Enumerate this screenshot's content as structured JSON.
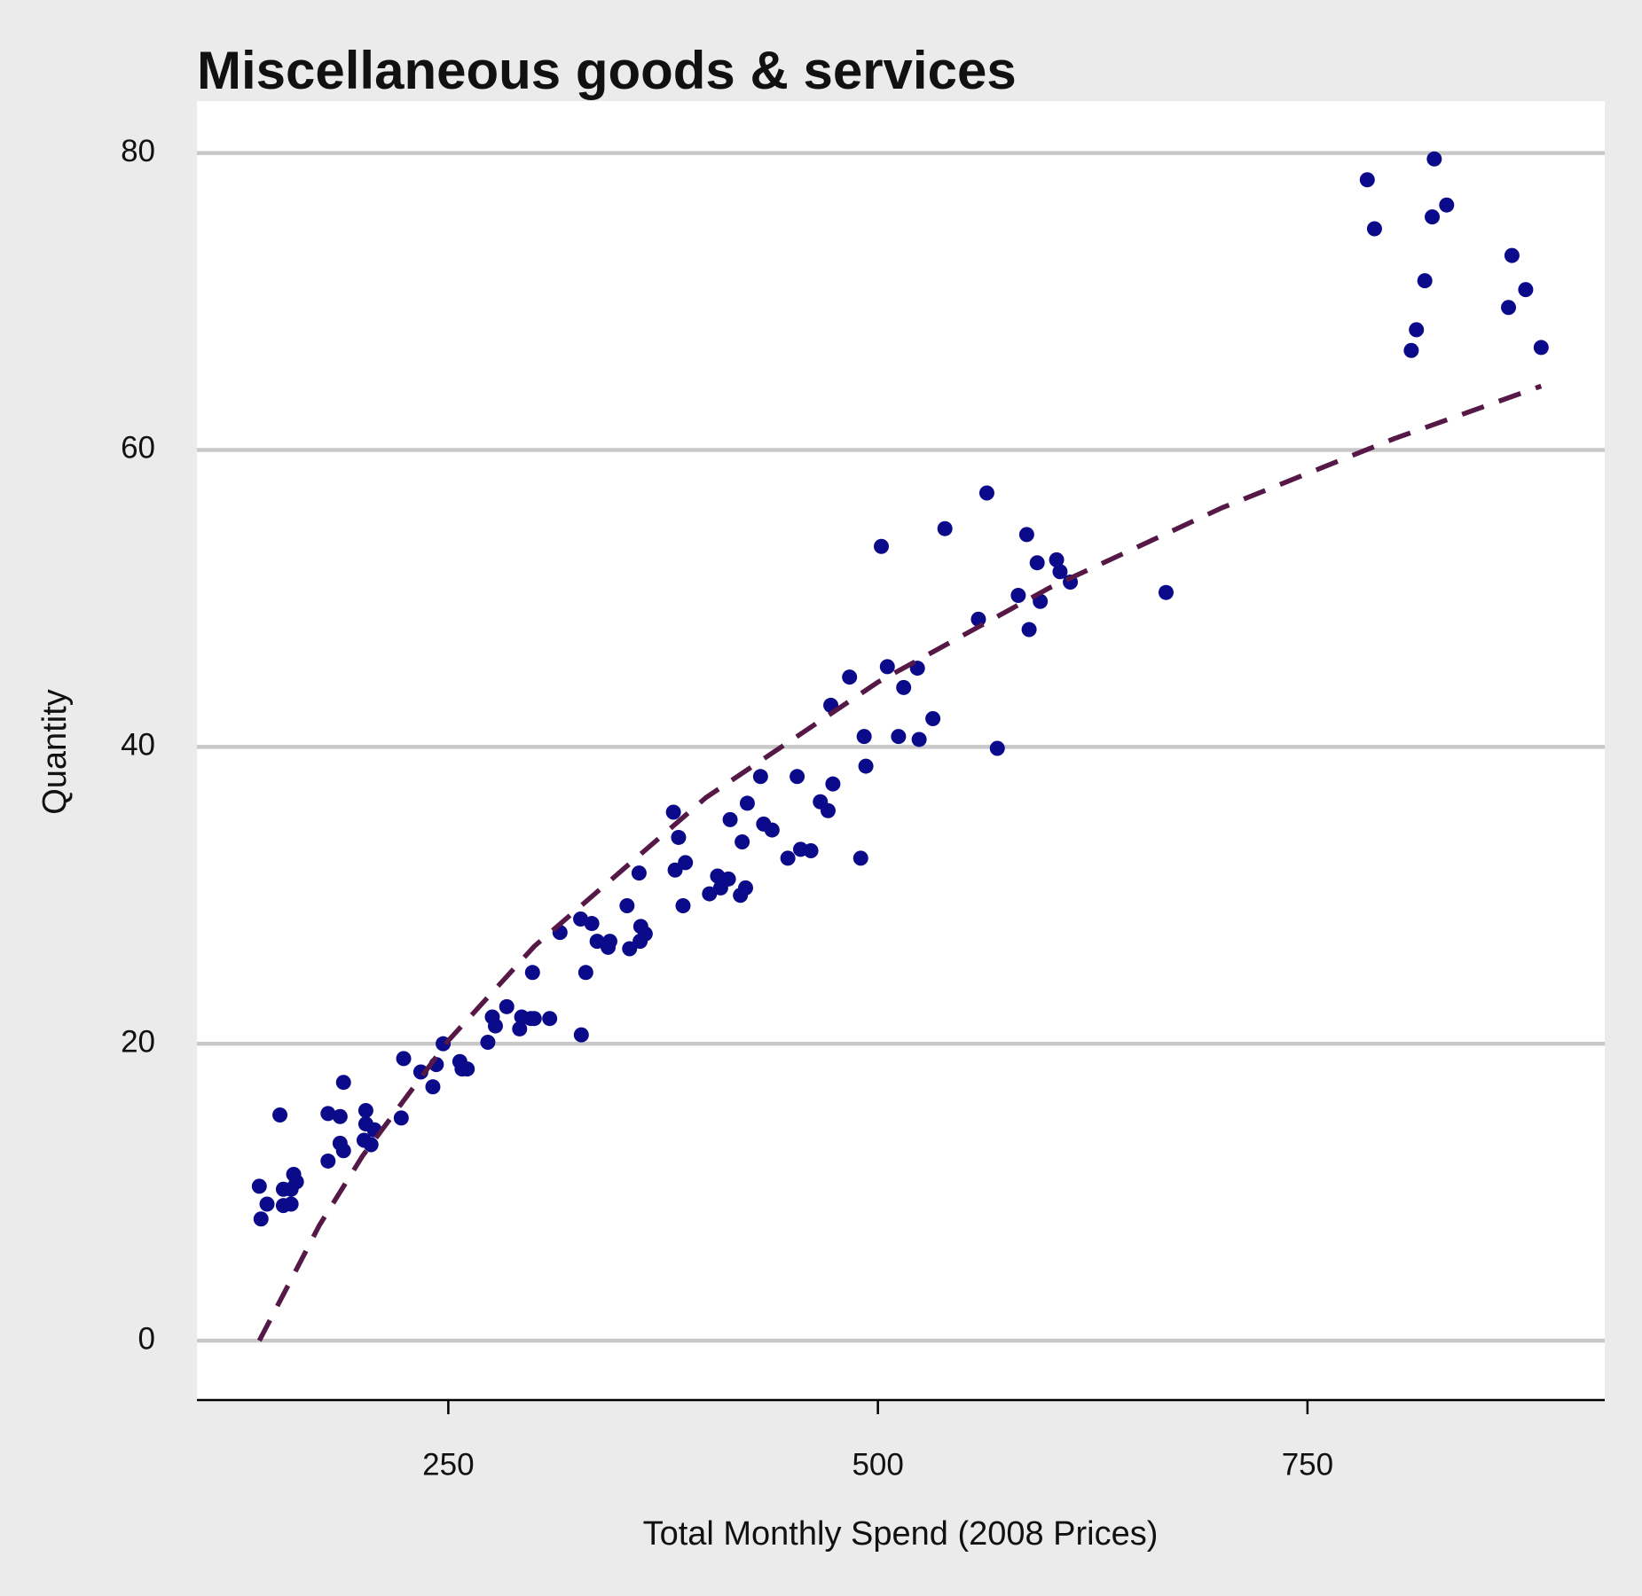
{
  "chart_data": {
    "type": "scatter",
    "title": "Miscellaneous goods & services",
    "x_label": "Total Monthly Spend (2008 Prices)",
    "y_label": "Quantity",
    "x": [
      140,
      141,
      144.5,
      152,
      154,
      154,
      158.5,
      160,
      158.5,
      161.6,
      180,
      180,
      187,
      187,
      189,
      189,
      202,
      202,
      201,
      205,
      207,
      222.6,
      224,
      234,
      241,
      243,
      247,
      256.7,
      258,
      261,
      273,
      275.6,
      277.4,
      284,
      291.5,
      292.7,
      298,
      299,
      300,
      309,
      315,
      327,
      327.4,
      330,
      333.5,
      336.6,
      343,
      344,
      354,
      355.5,
      361,
      361.6,
      362,
      364.6,
      381,
      382,
      384,
      386.6,
      388,
      402,
      406.7,
      408.5,
      413,
      414,
      420,
      421,
      423,
      424,
      431.7,
      433.5,
      438.4,
      447.6,
      453,
      455,
      461,
      466.5,
      471,
      472.6,
      473.8,
      483.5,
      490,
      492,
      493,
      502,
      505.5,
      512,
      515,
      523,
      524,
      532,
      539,
      558.5,
      563.4,
      569.5,
      581.7,
      586.6,
      588,
      592.7,
      594.5,
      604,
      606,
      612,
      667.7,
      784.8,
      789,
      810.4,
      813.4,
      818.3,
      822.6,
      823.8,
      831,
      867,
      869,
      877,
      886
    ],
    "values": [
      10.4,
      8.2,
      9.2,
      15.2,
      10.2,
      9.1,
      10.2,
      11.2,
      9.2,
      10.7,
      15.3,
      12.1,
      15.1,
      13.3,
      12.8,
      17.4,
      15.5,
      14.6,
      13.5,
      13.2,
      14.2,
      15.0,
      19.0,
      18.1,
      17.1,
      18.6,
      20.0,
      18.8,
      18.3,
      18.3,
      20.1,
      21.8,
      21.2,
      22.5,
      21.0,
      21.8,
      21.7,
      24.8,
      21.7,
      21.7,
      27.5,
      28.4,
      20.6,
      24.8,
      28.1,
      26.9,
      26.5,
      26.9,
      29.3,
      26.4,
      31.5,
      26.9,
      27.9,
      27.4,
      35.6,
      31.7,
      33.9,
      29.3,
      32.2,
      30.1,
      31.3,
      30.5,
      31.1,
      35.1,
      30.0,
      33.6,
      30.5,
      36.2,
      38.0,
      34.8,
      34.4,
      32.5,
      38.0,
      33.1,
      33.0,
      36.3,
      35.7,
      42.8,
      37.5,
      44.7,
      32.5,
      40.7,
      38.7,
      53.5,
      45.4,
      40.7,
      44.0,
      45.3,
      40.5,
      41.9,
      54.7,
      48.6,
      57.1,
      39.9,
      50.2,
      54.3,
      47.9,
      52.4,
      49.8,
      52.6,
      51.8,
      51.1,
      50.4,
      78.2,
      74.9,
      66.7,
      68.1,
      71.4,
      75.7,
      79.6,
      76.5,
      69.6,
      73.1,
      70.8,
      66.9
    ],
    "color": "#0b0a8a",
    "trend": {
      "x": [
        140,
        175,
        200,
        250,
        300,
        400,
        500,
        600,
        700,
        800,
        886
      ],
      "values": [
        0,
        7.78,
        12.43,
        20.21,
        26.56,
        36.59,
        44.36,
        50.72,
        56.09,
        60.74,
        64.3
      ],
      "color": "#561846"
    },
    "xlim": [
      103.7,
      923
    ],
    "ylim": [
      -4,
      83.5
    ],
    "xticks": [
      250,
      500,
      750
    ],
    "yticks": [
      0,
      20,
      40,
      60,
      80
    ],
    "grid": true
  }
}
